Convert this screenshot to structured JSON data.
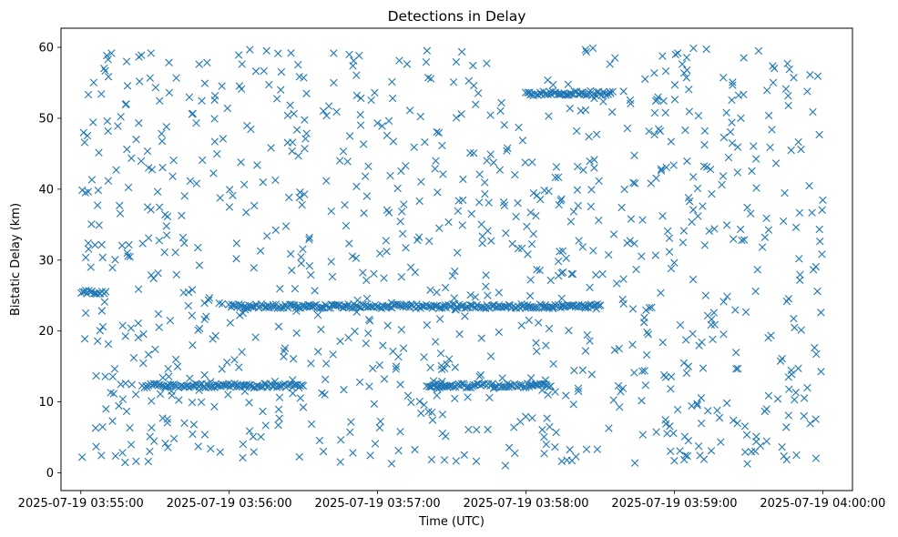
{
  "chart_data": {
    "type": "scatter",
    "title": "Detections in Delay",
    "xlabel": "Time (UTC)",
    "ylabel": "Bistatic Delay (km)",
    "x_axis": {
      "type": "datetime",
      "ticks": [
        "2025-07-19 03:55:00",
        "2025-07-19 03:56:00",
        "2025-07-19 03:57:00",
        "2025-07-19 03:58:00",
        "2025-07-19 03:59:00",
        "2025-07-19 04:00:00"
      ],
      "xlim": [
        "2025-07-19 03:54:52",
        "2025-07-19 04:00:12"
      ]
    },
    "y_axis": {
      "ticks": [
        0,
        10,
        20,
        30,
        40,
        50,
        60
      ],
      "ylim": [
        -2.5,
        62.7
      ]
    },
    "grid": false,
    "legend": "none",
    "marker": "x",
    "color": "#1f77b4",
    "series": [
      {
        "tracks": [
          {
            "description": "dense constant track",
            "x_range": [
              "2025-07-19 03:56:00",
              "2025-07-19 03:58:30"
            ],
            "y": 23.5
          },
          {
            "description": "dense early track",
            "x_range": [
              "2025-07-19 03:55:00",
              "2025-07-19 03:55:10"
            ],
            "y": 25.5
          },
          {
            "description": "upper track",
            "x_range": [
              "2025-07-19 03:58:00",
              "2025-07-19 03:58:35"
            ],
            "y": 53.5
          },
          {
            "description": "lower track",
            "x_range": [
              "2025-07-19 03:55:25",
              "2025-07-19 03:56:30"
            ],
            "y": 12.3
          },
          {
            "description": "lower track 2",
            "x_range": [
              "2025-07-19 03:57:20",
              "2025-07-19 03:58:10"
            ],
            "y": 12.3
          }
        ],
        "scattered_points": {
          "x_range": [
            "2025-07-19 03:55:00",
            "2025-07-19 04:00:00"
          ],
          "y_range": [
            1,
            60
          ],
          "approx_count": 1000
        }
      }
    ]
  }
}
